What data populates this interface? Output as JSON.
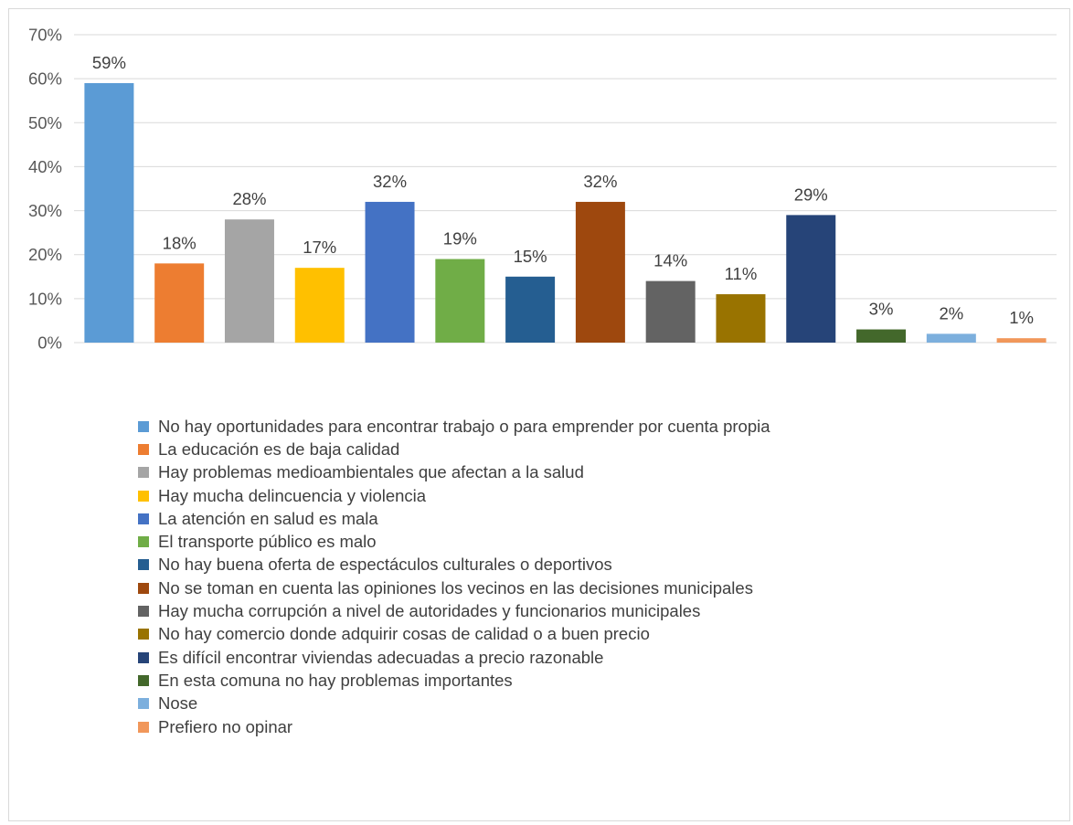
{
  "chart_data": {
    "type": "bar",
    "categories": [
      "No hay oportunidades para encontrar trabajo o para emprender por cuenta propia",
      "La educación es de baja calidad",
      "Hay problemas medioambientales que afectan a la salud",
      "Hay mucha delincuencia y violencia",
      "La atención en salud es mala",
      "El transporte público es malo",
      "No hay buena oferta de espectáculos culturales o deportivos",
      "No se toman en cuenta las opiniones los vecinos en las decisiones municipales",
      "Hay mucha corrupción a nivel de autoridades y funcionarios municipales",
      "No hay comercio donde adquirir cosas de calidad o a buen precio",
      "Es difícil encontrar viviendas adecuadas a precio razonable",
      "En esta comuna no hay problemas importantes",
      "Nose",
      "Prefiero no opinar"
    ],
    "values": [
      59,
      18,
      28,
      17,
      32,
      19,
      15,
      32,
      14,
      11,
      29,
      3,
      2,
      1
    ],
    "data_labels": [
      "59%",
      "18%",
      "28%",
      "17%",
      "32%",
      "19%",
      "15%",
      "32%",
      "14%",
      "11%",
      "29%",
      "3%",
      "2%",
      "1%"
    ],
    "colors": [
      "#5b9bd5",
      "#ed7d31",
      "#a5a5a5",
      "#ffc000",
      "#4472c4",
      "#70ad47",
      "#255e91",
      "#9e480e",
      "#636363",
      "#997300",
      "#264478",
      "#43682b",
      "#7cafdd",
      "#f1975a"
    ],
    "yticks": [
      "0%",
      "10%",
      "20%",
      "30%",
      "40%",
      "50%",
      "60%",
      "70%"
    ],
    "ylim": [
      0,
      70
    ],
    "grid": true,
    "legend_position": "bottom"
  }
}
